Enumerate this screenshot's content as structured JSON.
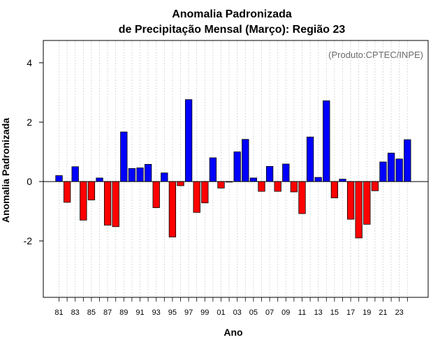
{
  "chart_data": {
    "type": "bar",
    "title_line1": "Anomalia Padronizada",
    "title_line2": "de Precipitação Mensal (Março): Região 23",
    "xlabel": "Ano",
    "ylabel": "Anomalia Padronizada",
    "credit": "(Produto:CPTEC/INPE)",
    "ylim": [
      -3.9,
      4.75
    ],
    "yticks": [
      -2,
      0,
      2,
      4
    ],
    "ytick_labels": [
      "-2",
      "0",
      "2",
      "4"
    ],
    "grid": "vertical dotted",
    "positive_color": "#0000ff",
    "negative_color": "#ff0000",
    "years": [
      1981,
      1982,
      1983,
      1984,
      1985,
      1986,
      1987,
      1988,
      1989,
      1990,
      1991,
      1992,
      1993,
      1994,
      1995,
      1996,
      1997,
      1998,
      1999,
      2000,
      2001,
      2002,
      2003,
      2004,
      2005,
      2006,
      2007,
      2008,
      2009,
      2010,
      2011,
      2012,
      2013,
      2014,
      2015,
      2016,
      2017,
      2018,
      2019,
      2020,
      2021,
      2022,
      2023,
      2024
    ],
    "xtick_labels": [
      "81",
      "83",
      "85",
      "87",
      "89",
      "91",
      "93",
      "95",
      "97",
      "99",
      "01",
      "03",
      "05",
      "07",
      "09",
      "11",
      "13",
      "15",
      "17",
      "19",
      "21",
      "23"
    ],
    "values": [
      0.2,
      -0.7,
      0.5,
      -1.3,
      -0.62,
      0.12,
      -1.47,
      -1.52,
      1.67,
      0.44,
      0.46,
      0.58,
      -0.88,
      0.29,
      -1.87,
      -0.14,
      2.76,
      -1.04,
      -0.72,
      0.8,
      -0.22,
      0.0,
      1.0,
      1.42,
      0.12,
      -0.33,
      0.51,
      -0.33,
      0.59,
      -0.35,
      -1.08,
      1.5,
      0.14,
      2.72,
      -0.55,
      0.08,
      -1.27,
      -1.9,
      -1.44,
      -0.31,
      0.66,
      0.96,
      0.76,
      1.41
    ]
  }
}
